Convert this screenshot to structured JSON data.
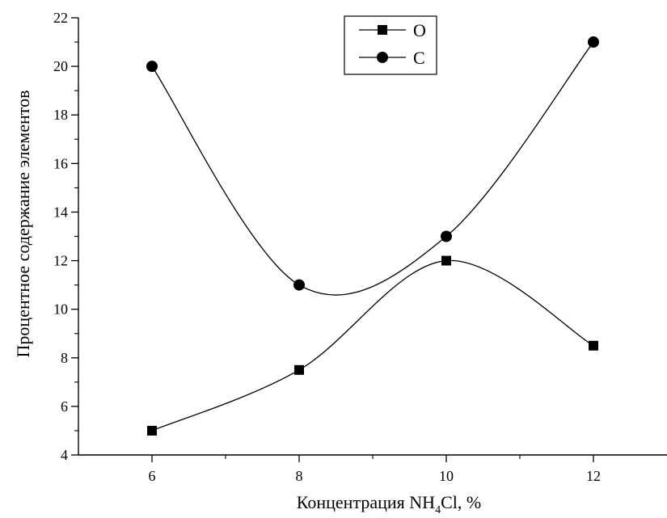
{
  "chart_data": {
    "type": "line",
    "x": [
      6,
      8,
      10,
      12
    ],
    "series": [
      {
        "name": "O",
        "marker": "square",
        "values": [
          5,
          7.5,
          12,
          8.5
        ]
      },
      {
        "name": "C",
        "marker": "circle",
        "values": [
          20,
          11,
          13,
          21
        ]
      }
    ],
    "xlabel_prefix": "Концентрация NH",
    "xlabel_sub": "4",
    "xlabel_suffix": "Cl, %",
    "ylabel": "Процентное содержание элементов",
    "xlim": [
      5,
      13
    ],
    "ylim": [
      4,
      22
    ],
    "x_ticks": [
      6,
      8,
      10,
      12
    ],
    "y_ticks": [
      4,
      6,
      8,
      10,
      12,
      14,
      16,
      18,
      20,
      22
    ],
    "legend_position": "top-center",
    "grid": false,
    "line_color": "#000000",
    "smoothed": true
  }
}
